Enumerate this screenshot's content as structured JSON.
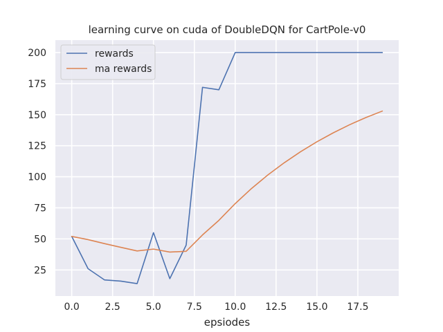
{
  "chart_data": {
    "type": "line",
    "title": "learning curve on cuda of DoubleDQN for CartPole-v0",
    "xlabel": "epsiodes",
    "ylabel": "",
    "xlim": [
      -1.0,
      20.0
    ],
    "ylim": [
      4,
      210
    ],
    "xticks": [
      0.0,
      2.5,
      5.0,
      7.5,
      10.0,
      12.5,
      15.0,
      17.5
    ],
    "xtick_labels": [
      "0.0",
      "2.5",
      "5.0",
      "7.5",
      "10.0",
      "12.5",
      "15.0",
      "17.5"
    ],
    "yticks": [
      25,
      50,
      75,
      100,
      125,
      150,
      175,
      200
    ],
    "ytick_labels": [
      "25",
      "50",
      "75",
      "100",
      "125",
      "150",
      "175",
      "200"
    ],
    "grid": true,
    "legend_position": "upper-left",
    "x": [
      0,
      1,
      2,
      3,
      4,
      5,
      6,
      7,
      8,
      9,
      10,
      11,
      12,
      13,
      14,
      15,
      16,
      17,
      18,
      19
    ],
    "series": [
      {
        "name": "rewards",
        "color": "#4c72b0",
        "values": [
          52,
          26,
          17,
          16,
          14,
          55,
          18,
          45,
          172,
          170,
          200,
          200,
          200,
          200,
          200,
          200,
          200,
          200,
          200,
          200
        ]
      },
      {
        "name": "ma rewards",
        "color": "#dd8452",
        "values": [
          52,
          49.4,
          46.2,
          43.2,
          40.3,
          41.8,
          39.4,
          40.0,
          53.2,
          64.9,
          78.4,
          90.6,
          101.5,
          111.3,
          120.2,
          128.2,
          135.4,
          141.9,
          147.7,
          152.9
        ]
      }
    ]
  }
}
